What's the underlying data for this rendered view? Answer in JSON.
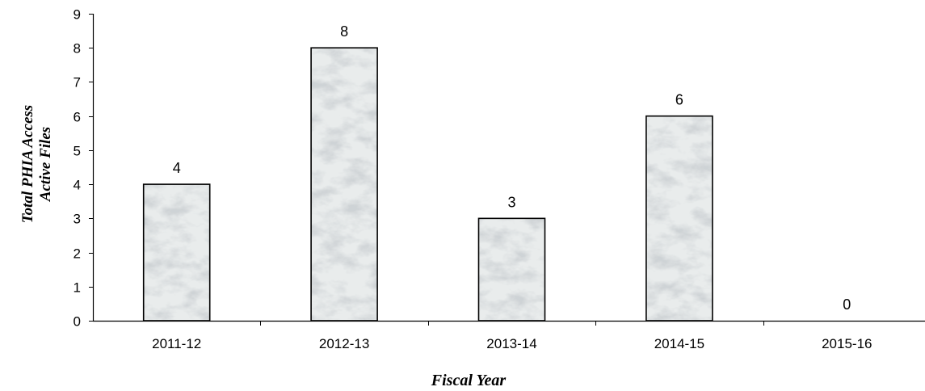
{
  "chart_data": {
    "type": "bar",
    "categories": [
      "2011-12",
      "2012-13",
      "2013-14",
      "2014-15",
      "2015-16"
    ],
    "values": [
      4,
      8,
      3,
      6,
      0
    ],
    "data_labels": [
      "4",
      "8",
      "3",
      "6",
      "0"
    ],
    "title": "",
    "xlabel": "Fiscal Year",
    "ylabel": "Total PHIA Access Active Files",
    "ylabel_lines": [
      "Total PHIA Access",
      "Active Files"
    ],
    "ylim": [
      0,
      9
    ],
    "yticks": [
      "0",
      "1",
      "2",
      "3",
      "4",
      "5",
      "6",
      "7",
      "8",
      "9"
    ],
    "grid": false,
    "legend": "none",
    "bar_fill": "marble texture",
    "colors": {
      "bar_base": "#dfe3e3",
      "bar_vein": "#9aa3a6",
      "bar_outline": "#000000",
      "axis": "#000000",
      "text": "#000000"
    }
  }
}
